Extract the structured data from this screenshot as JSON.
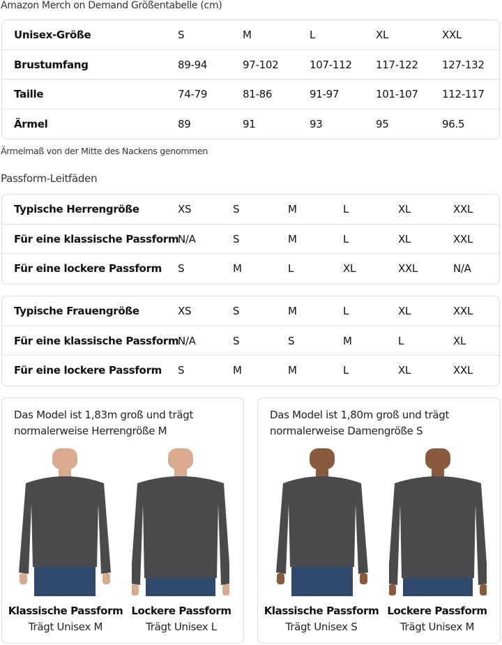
{
  "title": "Amazon Merch on Demand Größentabelle (cm)",
  "size_table": {
    "rows": [
      [
        "Unisex-Größe",
        "S",
        "M",
        "L",
        "XL",
        "XXL"
      ],
      [
        "Brustumfang",
        "89-94",
        "97-102",
        "107-112",
        "117-122",
        "127-132"
      ],
      [
        "Taille",
        "74-79",
        "81-86",
        "91-97",
        "101-107",
        "112-117"
      ],
      [
        "Ärmel",
        "89",
        "91",
        "93",
        "95",
        "96.5"
      ]
    ]
  },
  "note": "Ärmelmaß von der Mitte des Nackens genommen",
  "fit_guide_title": "Passform-Leitfäden",
  "men_table": {
    "rows": [
      [
        "Typische Herrengröße",
        "XS",
        "S",
        "M",
        "L",
        "XL",
        "XXL"
      ],
      [
        "Für eine klassische Passform",
        "N/A",
        "S",
        "M",
        "L",
        "XL",
        "XXL"
      ],
      [
        "Für eine lockere Passform",
        "S",
        "M",
        "L",
        "XL",
        "XXL",
        "N/A"
      ]
    ]
  },
  "women_table": {
    "rows": [
      [
        "Typische Frauengröße",
        "XS",
        "S",
        "M",
        "L",
        "XL",
        "XXL"
      ],
      [
        "Für eine klassische Passform",
        "N/A",
        "S",
        "S",
        "M",
        "L",
        "XL"
      ],
      [
        "Für eine lockere Passform",
        "S",
        "M",
        "M",
        "L",
        "XL",
        "XXL"
      ]
    ]
  },
  "cards": [
    {
      "text": "Das Model ist 1,83m groß und trägt normalerweise Herrengröße M",
      "photos": [
        {
          "label": "Klassische Passform",
          "size": "Trägt Unisex M"
        },
        {
          "label": "Lockere Passform",
          "size": "Trägt Unisex L"
        }
      ]
    },
    {
      "text": "Das Model ist 1,80m groß und trägt normalerweise Damengröße S",
      "photos": [
        {
          "label": "Klassische Passform",
          "size": "Trägt Unisex S"
        },
        {
          "label": "Lockere Passform",
          "size": "Trägt Unisex M"
        }
      ]
    }
  ],
  "colors": {
    "sweatshirt": "#4a4a4c",
    "jeans": "#2f4a6e",
    "border": "#dddddd"
  }
}
